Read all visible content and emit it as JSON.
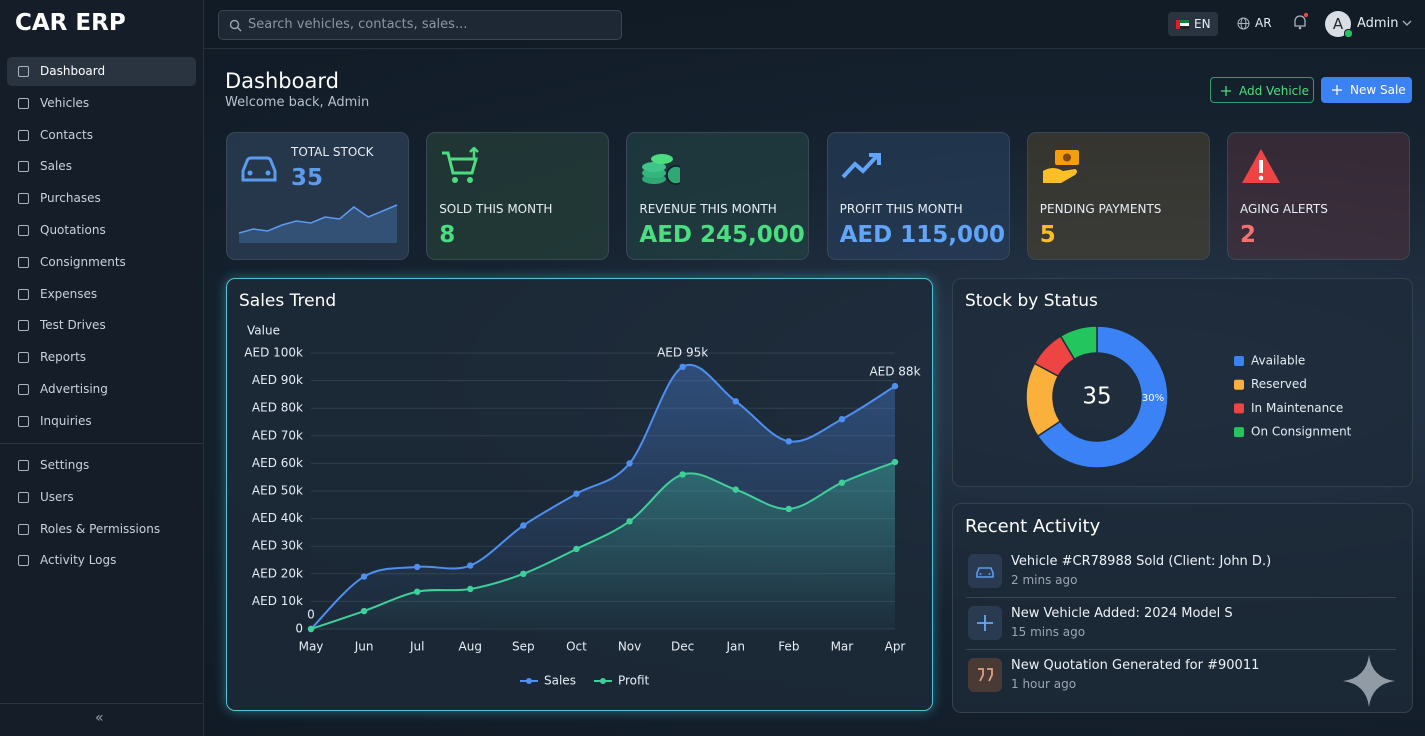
{
  "sidebar": {
    "brand": "CAR ERP",
    "menu": [
      "Dashboard",
      "Vehicles",
      "Contacts",
      "Sales",
      "Purchases",
      "Quotations",
      "Consignments",
      "Expenses",
      "Test Drives",
      "Reports",
      "Advertising",
      "Inquiries"
    ],
    "admin_menu": [
      "Settings",
      "Users",
      "Roles & Permissions",
      "Activity Logs"
    ],
    "collapse": "«"
  },
  "header": {
    "search_placeholder": "Search vehicles, contacts, sales...",
    "languages": [
      "EN",
      "AR"
    ],
    "avatar": "A",
    "user": "Admin"
  },
  "page": {
    "title": "Dashboard",
    "subtitle": "Welcome back, Admin",
    "actions": [
      "Add Vehicle",
      "New Sale"
    ]
  },
  "kpis": [
    {
      "label": "TOTAL STOCK",
      "value": "35",
      "color": "#5b9bf0",
      "sparkline": [
        2,
        3,
        2.5,
        4,
        5,
        4.5,
        6,
        5.5,
        8.5,
        6,
        7.5,
        9
      ]
    },
    {
      "label": "SOLD THIS MONTH",
      "value": "8",
      "color": "#4ade80"
    },
    {
      "label": "REVENUE THIS MONTH",
      "value": "AED 245,000",
      "color": "#4ade80"
    },
    {
      "label": "PROFIT THIS MONTH",
      "value": "AED 115,000",
      "color": "#60a5fa"
    },
    {
      "label": "PENDING PAYMENTS",
      "value": "5",
      "color": "#fbbf24"
    },
    {
      "label": "AGING ALERTS",
      "value": "2",
      "color": "#f87171"
    }
  ],
  "chart_data": [
    {
      "type": "line",
      "title": "Sales Trend",
      "y_label": "Value",
      "categories": [
        "May",
        "Jun",
        "Jul",
        "Aug",
        "Sep",
        "Oct",
        "Nov",
        "Dec",
        "Jan",
        "Feb",
        "Mar",
        "Apr"
      ],
      "series": [
        {
          "name": "Sales",
          "color": "#4f8ff0",
          "values": [
            0,
            19000,
            22500,
            23000,
            37500,
            49000,
            60000,
            95000,
            82500,
            68000,
            76000,
            88000
          ],
          "value_labels": [
            "0",
            null,
            null,
            null,
            null,
            null,
            null,
            "AED 95k",
            null,
            null,
            null,
            "AED 88k"
          ]
        },
        {
          "name": "Profit",
          "color": "#3fcf9a",
          "values": [
            0,
            6500,
            13500,
            14500,
            20000,
            29000,
            39000,
            56000,
            50500,
            43500,
            53000,
            60500
          ]
        }
      ],
      "ylim": [
        0,
        100000
      ],
      "yticks": [
        0,
        {
          "value": 10000,
          "label": "AED 10k"
        },
        {
          "value": 20000,
          "label": "AED 20k"
        },
        {
          "value": 30000,
          "label": "AED 30k"
        },
        {
          "value": 40000,
          "label": "AED 40k"
        },
        {
          "value": 50000,
          "label": "AED 50k"
        },
        {
          "value": 60000,
          "label": "AED 60k"
        },
        {
          "value": 70000,
          "label": "AED 70k"
        },
        {
          "value": 80000,
          "label": "AED 80k"
        },
        {
          "value": 90000,
          "label": "AED 90k"
        },
        {
          "value": 100000,
          "label": "AED 100k"
        }
      ],
      "grid": true,
      "legend": "bottom"
    },
    {
      "type": "pie",
      "title": "Stock by Status",
      "donut": true,
      "center_label": "35",
      "annotation": "30%",
      "categories": [
        "Available",
        "Reserved",
        "In Maintenance",
        "On Consignment"
      ],
      "values": [
        23,
        6,
        3,
        3
      ],
      "colors": [
        "#3b82f6",
        "#fbb03b",
        "#ef4444",
        "#22c55e"
      ],
      "legend": "right"
    }
  ],
  "recent_activity": {
    "title": "Recent Activity",
    "items": [
      {
        "title": "Vehicle #CR78988 Sold (Client: John D.)",
        "time": "2 mins ago"
      },
      {
        "title": "New Vehicle Added: 2024 Model S",
        "time": "15 mins ago"
      },
      {
        "title": "New Quotation Generated for #90011",
        "time": "1 hour ago"
      }
    ]
  }
}
